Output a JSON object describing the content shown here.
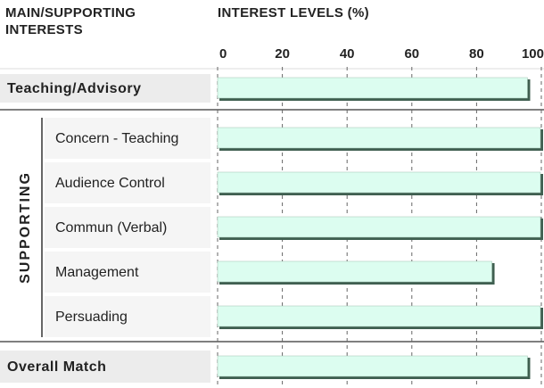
{
  "chart_data": {
    "type": "bar",
    "orientation": "horizontal",
    "row_header": "MAIN/SUPPORTING INTERESTS",
    "title": "INTEREST LEVELS (%)",
    "group_label": "SUPPORTING",
    "group_members": [
      1,
      2,
      3,
      4,
      5
    ],
    "categories": [
      "Teaching/Advisory",
      "Concern - Teaching",
      "Audience Control",
      "Commun (Verbal)",
      "Management",
      "Persuading",
      "Overall Match"
    ],
    "values": [
      96,
      100,
      100,
      100,
      85,
      100,
      96
    ],
    "color": "#dcfdf0",
    "xlim": [
      0,
      100
    ],
    "xticks": [
      0,
      20,
      40,
      60,
      80,
      100
    ],
    "grid": true
  }
}
